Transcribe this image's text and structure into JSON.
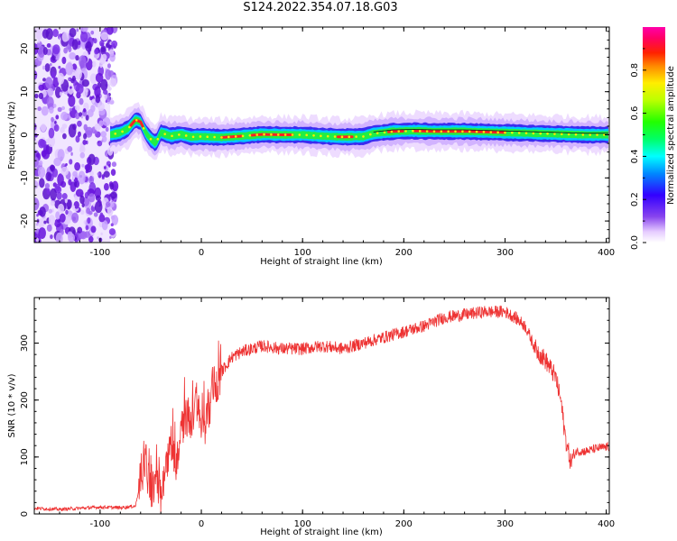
{
  "title": "S124.2022.354.07.18.G03",
  "colorbar": {
    "label": "Normalized spectral amplitude",
    "ticks": [
      "0.0",
      "0.2",
      "0.4",
      "0.6",
      "0.8"
    ],
    "tick_values": [
      0.0,
      0.2,
      0.4,
      0.6,
      0.8
    ],
    "range": [
      0,
      1
    ]
  },
  "chart_data": [
    {
      "type": "heatmap",
      "xlabel": "Height of straight line (km)",
      "ylabel": "Frequency (Hz)",
      "xlim": [
        -165,
        403
      ],
      "ylim": [
        -25,
        25
      ],
      "xticks": [
        -100,
        0,
        100,
        200,
        300,
        400
      ],
      "xtick_labels": [
        "-100",
        "0",
        "100",
        "200",
        "300",
        "400"
      ],
      "yticks": [
        -20,
        -10,
        0,
        10,
        20
      ],
      "ytick_labels": [
        "-20",
        "-10",
        "0",
        "10",
        "20"
      ],
      "colormap": "hsv-like (violet-blue-cyan-green-yellow-red-magenta)",
      "noise_region_x": [
        -165,
        -90
      ],
      "ridge": {
        "x": [
          -90,
          -80,
          -72,
          -65,
          -60,
          -55,
          -50,
          -45,
          -40,
          -30,
          -20,
          -10,
          0,
          20,
          40,
          60,
          80,
          100,
          120,
          140,
          160,
          170,
          190,
          210,
          230,
          260,
          290,
          320,
          350,
          380,
          403
        ],
        "freq": [
          0.0,
          0.5,
          1.5,
          3.5,
          3.0,
          0.5,
          -1.0,
          -2.0,
          0.5,
          -0.3,
          0.1,
          -0.5,
          -0.4,
          -0.6,
          -0.3,
          0.1,
          0.0,
          0.0,
          -0.3,
          -0.5,
          -0.4,
          0.3,
          0.8,
          0.9,
          0.8,
          0.8,
          0.6,
          0.4,
          0.2,
          0.0,
          0.0
        ]
      },
      "grid": false
    },
    {
      "type": "line",
      "xlabel": "Height of straight line (km)",
      "ylabel": "SNR (10 * v/v)",
      "xlim": [
        -165,
        403
      ],
      "ylim": [
        0,
        380
      ],
      "xticks": [
        -100,
        0,
        100,
        200,
        300,
        400
      ],
      "xtick_labels": [
        "-100",
        "0",
        "100",
        "200",
        "300",
        "400"
      ],
      "yticks": [
        0,
        100,
        200,
        300
      ],
      "ytick_labels": [
        "0",
        "100",
        "200",
        "300"
      ],
      "color": "#ee3333",
      "series": [
        {
          "x": [
            -165,
            -140,
            -120,
            -100,
            -80,
            -65,
            -60,
            -55,
            -50,
            -45,
            -40,
            -35,
            -30,
            -25,
            -20,
            -15,
            -10,
            -5,
            0,
            5,
            10,
            20,
            30,
            40,
            50,
            60,
            80,
            100,
            120,
            140,
            160,
            180,
            200,
            220,
            240,
            260,
            280,
            300,
            310,
            320,
            330,
            340,
            350,
            355,
            360,
            365,
            370,
            380,
            390,
            403
          ],
          "y": [
            10,
            8,
            10,
            12,
            11,
            14,
            60,
            90,
            40,
            60,
            20,
            80,
            130,
            90,
            150,
            170,
            160,
            200,
            150,
            160,
            200,
            250,
            275,
            285,
            290,
            295,
            290,
            290,
            295,
            290,
            300,
            310,
            320,
            330,
            345,
            350,
            355,
            355,
            345,
            330,
            290,
            270,
            240,
            200,
            130,
            90,
            110,
            110,
            115,
            118
          ]
        }
      ],
      "grid": false
    }
  ]
}
